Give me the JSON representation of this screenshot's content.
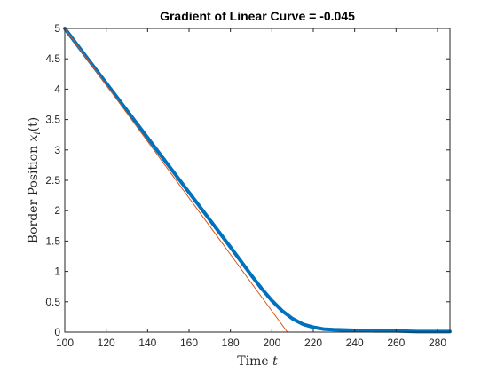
{
  "chart_data": {
    "type": "line",
    "title": "Gradient of Linear Curve = -0.045",
    "xlabel": "Time",
    "xlabel_var": "t",
    "ylabel": "Border Position",
    "ylabel_var": "x",
    "ylabel_sub": "i",
    "ylabel_arg": "(t)",
    "xlim": [
      100,
      286
    ],
    "ylim": [
      0,
      5
    ],
    "xticks": [
      100,
      120,
      140,
      160,
      180,
      200,
      220,
      240,
      260,
      280
    ],
    "yticks": [
      0,
      0.5,
      1,
      1.5,
      2,
      2.5,
      3,
      3.5,
      4,
      4.5,
      5
    ],
    "ytick_labels": [
      "0",
      "0.5",
      "1",
      "1.5",
      "2",
      "2.5",
      "3",
      "3.5",
      "4",
      "4.5",
      "5"
    ],
    "grid": false,
    "box": true,
    "series": [
      {
        "color": "#0072BD",
        "x": [
          100,
          110,
          120,
          130,
          140,
          150,
          160,
          170,
          180,
          185,
          190,
          195,
          200,
          205,
          210,
          215,
          220,
          225,
          230,
          240,
          250,
          260,
          270,
          280,
          286
        ],
        "y": [
          5.0,
          4.55,
          4.1,
          3.65,
          3.2,
          2.75,
          2.3,
          1.85,
          1.4,
          1.17,
          0.94,
          0.72,
          0.52,
          0.35,
          0.22,
          0.13,
          0.08,
          0.05,
          0.04,
          0.03,
          0.02,
          0.02,
          0.01,
          0.01,
          0.01
        ]
      },
      {
        "color": "#D95319",
        "x": [
          100,
          207.5
        ],
        "y": [
          5.0,
          0.0
        ]
      }
    ]
  }
}
